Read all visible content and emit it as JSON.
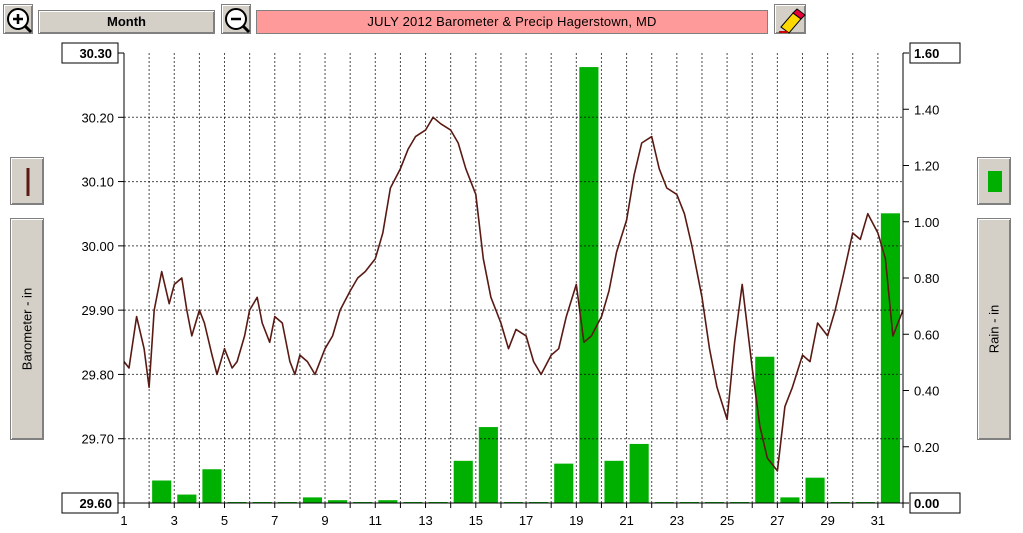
{
  "toolbar": {
    "period_label": "Month",
    "title": "JULY 2012   Barometer & Precip    Hagerstown, MD",
    "zoom_in_icon": "zoom-in-icon",
    "zoom_out_icon": "zoom-out-icon",
    "eraser_icon": "eraser-icon"
  },
  "side": {
    "left_axis_label": "Barometer - in",
    "right_axis_label": "Rain - in"
  },
  "colors": {
    "barometer": "#5a1a14",
    "rain": "#00b000",
    "title_bg": "#ff9a9a",
    "grid": "#000000"
  },
  "chart_data": {
    "type": "line",
    "title": "JULY 2012   Barometer & Precip    Hagerstown, MD",
    "xlabel": "",
    "x_range": [
      1,
      32
    ],
    "x_ticks": [
      "1",
      "3",
      "5",
      "7",
      "9",
      "11",
      "13",
      "15",
      "17",
      "19",
      "21",
      "23",
      "25",
      "27",
      "29",
      "31"
    ],
    "grid": true,
    "left_axis": {
      "label": "Barometer - in",
      "ylim": [
        29.6,
        30.3
      ],
      "ticks": [
        "29.60",
        "29.70",
        "29.80",
        "29.90",
        "30.00",
        "30.10",
        "30.20",
        "30.30"
      ]
    },
    "right_axis": {
      "label": "Rain - in",
      "ylim": [
        0.0,
        1.6
      ],
      "ticks": [
        "0.00",
        "0.20",
        "0.40",
        "0.60",
        "0.80",
        "1.00",
        "1.20",
        "1.40",
        "1.60"
      ]
    },
    "series": [
      {
        "name": "Barometer - in",
        "kind": "line",
        "x": [
          1.0,
          1.2,
          1.5,
          1.8,
          2.0,
          2.2,
          2.5,
          2.8,
          3.0,
          3.3,
          3.5,
          3.7,
          4.0,
          4.2,
          4.5,
          4.7,
          5.0,
          5.3,
          5.5,
          5.8,
          6.0,
          6.3,
          6.5,
          6.8,
          7.0,
          7.3,
          7.6,
          7.8,
          8.0,
          8.3,
          8.6,
          9.0,
          9.3,
          9.6,
          10.0,
          10.3,
          10.6,
          11.0,
          11.3,
          11.6,
          12.0,
          12.3,
          12.6,
          13.0,
          13.3,
          13.6,
          14.0,
          14.3,
          14.6,
          15.0,
          15.3,
          15.6,
          16.0,
          16.3,
          16.6,
          17.0,
          17.3,
          17.6,
          18.0,
          18.3,
          18.6,
          19.0,
          19.3,
          19.6,
          20.0,
          20.3,
          20.6,
          21.0,
          21.3,
          21.6,
          22.0,
          22.3,
          22.6,
          23.0,
          23.3,
          23.6,
          24.0,
          24.3,
          24.6,
          25.0,
          25.3,
          25.6,
          26.0,
          26.3,
          26.6,
          27.0,
          27.3,
          27.6,
          28.0,
          28.3,
          28.6,
          29.0,
          29.3,
          29.6,
          30.0,
          30.3,
          30.6,
          31.0,
          31.3,
          31.6,
          32.0
        ],
        "y": [
          29.82,
          29.81,
          29.89,
          29.84,
          29.78,
          29.9,
          29.96,
          29.91,
          29.94,
          29.95,
          29.9,
          29.86,
          29.9,
          29.88,
          29.83,
          29.8,
          29.84,
          29.81,
          29.82,
          29.86,
          29.9,
          29.92,
          29.88,
          29.85,
          29.89,
          29.88,
          29.82,
          29.8,
          29.83,
          29.82,
          29.8,
          29.84,
          29.86,
          29.9,
          29.93,
          29.95,
          29.96,
          29.98,
          30.02,
          30.09,
          30.12,
          30.15,
          30.17,
          30.18,
          30.2,
          30.19,
          30.18,
          30.16,
          30.12,
          30.08,
          29.98,
          29.92,
          29.88,
          29.84,
          29.87,
          29.86,
          29.82,
          29.8,
          29.83,
          29.84,
          29.89,
          29.94,
          29.85,
          29.86,
          29.89,
          29.93,
          29.99,
          30.04,
          30.11,
          30.16,
          30.17,
          30.12,
          30.09,
          30.08,
          30.05,
          30.0,
          29.92,
          29.84,
          29.78,
          29.73,
          29.85,
          29.94,
          29.81,
          29.72,
          29.67,
          29.65,
          29.75,
          29.78,
          29.83,
          29.82,
          29.88,
          29.86,
          29.9,
          29.95,
          30.02,
          30.01,
          30.05,
          30.02,
          29.98,
          29.86,
          29.9
        ],
        "color": "#5a1a14"
      },
      {
        "name": "Rain - in",
        "kind": "bar",
        "axis": "right",
        "days": [
          2,
          3,
          4,
          5,
          6,
          7,
          8,
          9,
          10,
          11,
          12,
          13,
          14,
          15,
          16,
          17,
          18,
          19,
          20,
          21,
          22,
          23,
          24,
          25,
          26,
          27,
          28,
          29,
          30,
          31
        ],
        "values": [
          0.08,
          0.03,
          0.12,
          0.0,
          0.0,
          0.0,
          0.02,
          0.01,
          0.0,
          0.01,
          0.0,
          0.0,
          0.15,
          0.27,
          0.0,
          0.0,
          0.14,
          1.55,
          0.15,
          0.21,
          0.0,
          0.0,
          0.0,
          0.0,
          0.52,
          0.02,
          0.09,
          0.0,
          0.0,
          1.03
        ],
        "color": "#00b000"
      }
    ]
  }
}
